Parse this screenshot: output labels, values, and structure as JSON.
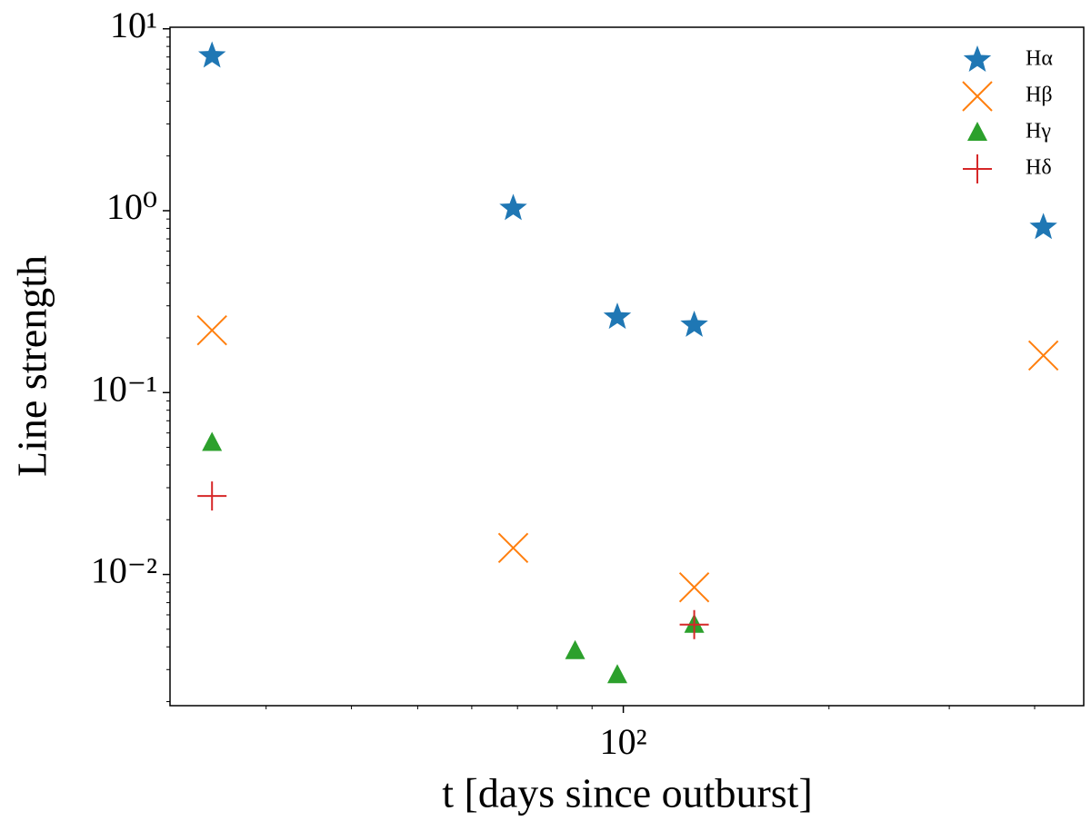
{
  "chart_data": {
    "type": "scatter",
    "xlabel": "t [days since outburst]",
    "ylabel": "Line strength",
    "xscale": "log",
    "yscale": "log",
    "legend": "upper right",
    "xlim": [
      21.7,
      472
    ],
    "ylim": [
      0.0019,
      10.2
    ],
    "xticks": [
      {
        "value": 100,
        "label": "10²"
      }
    ],
    "xminorticks": [
      30,
      40,
      50,
      60,
      70,
      80,
      90,
      200,
      300,
      400
    ],
    "yticks": [
      {
        "value": 0.01,
        "label": "10⁻²"
      },
      {
        "value": 0.1,
        "label": "10⁻¹"
      },
      {
        "value": 1,
        "label": "10⁰"
      },
      {
        "value": 10,
        "label": "10¹"
      }
    ],
    "yminorticks": [
      0.002,
      0.003,
      0.004,
      0.005,
      0.006,
      0.007,
      0.008,
      0.009,
      0.02,
      0.03,
      0.04,
      0.05,
      0.06,
      0.07,
      0.08,
      0.09,
      0.2,
      0.3,
      0.4,
      0.5,
      0.6,
      0.7,
      0.8,
      0.9,
      2,
      3,
      4,
      5,
      6,
      7,
      8,
      9
    ],
    "series": [
      {
        "name": "Hα",
        "color": "#1f77b4",
        "marker": "star",
        "x": [
          25,
          69,
          98,
          127,
          412
        ],
        "values": [
          7.1,
          1.03,
          0.26,
          0.235,
          0.81
        ]
      },
      {
        "name": "Hβ",
        "color": "#ff7f0e",
        "marker": "x",
        "x": [
          25,
          69,
          127,
          412
        ],
        "values": [
          0.22,
          0.014,
          0.0085,
          0.16
        ]
      },
      {
        "name": "Hγ",
        "color": "#2ca02c",
        "marker": "triangle",
        "x": [
          25,
          85,
          98,
          127
        ],
        "values": [
          0.053,
          0.0038,
          0.0028,
          0.0053
        ]
      },
      {
        "name": "Hδ",
        "color": "#d62728",
        "marker": "plus",
        "x": [
          25,
          127
        ],
        "values": [
          0.027,
          0.0053
        ]
      }
    ]
  }
}
